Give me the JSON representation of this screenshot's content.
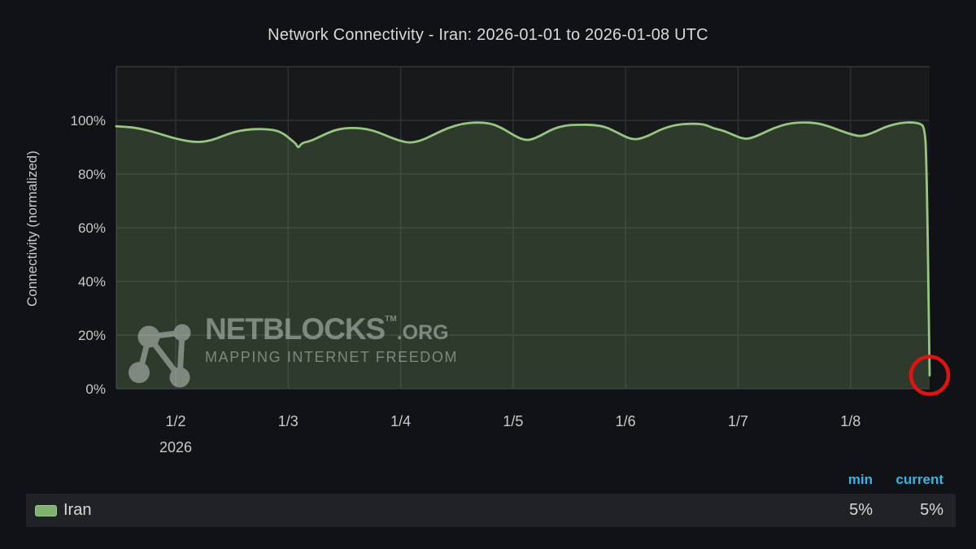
{
  "title": "Network Connectivity - Iran: 2026-01-01 to 2026-01-08 UTC",
  "chart_data": {
    "type": "area",
    "title": "Network Connectivity - Iran: 2026-01-01 to 2026-01-08 UTC",
    "ylabel": "Connectivity (normalized)",
    "xlabel": "",
    "ylim": [
      0,
      120
    ],
    "grid": true,
    "legend_position": "bottom",
    "y_ticks": [
      {
        "label": "0%",
        "value": 0
      },
      {
        "label": "20%",
        "value": 20
      },
      {
        "label": "40%",
        "value": 40
      },
      {
        "label": "60%",
        "value": 60
      },
      {
        "label": "80%",
        "value": 80
      },
      {
        "label": "100%",
        "value": 100
      }
    ],
    "x_ticks": [
      {
        "label": "1/2",
        "day": 1
      },
      {
        "label": "1/3",
        "day": 2
      },
      {
        "label": "1/4",
        "day": 3
      },
      {
        "label": "1/5",
        "day": 4
      },
      {
        "label": "1/6",
        "day": 5
      },
      {
        "label": "1/7",
        "day": 6
      },
      {
        "label": "1/8",
        "day": 7
      }
    ],
    "year_label": "2026",
    "x_range_days": [
      0.472,
      7.703
    ],
    "series": [
      {
        "name": "Iran",
        "color": "#7eb26d",
        "line_color": "#97c681",
        "fill_color": "rgba(126,178,109,0.22)",
        "min": "5%",
        "current": "5%",
        "points": [
          [
            0.472,
            97.8
          ],
          [
            0.55,
            97.6
          ],
          [
            0.65,
            97.2
          ],
          [
            0.78,
            96.0
          ],
          [
            0.9,
            94.4
          ],
          [
            1.02,
            93.0
          ],
          [
            1.13,
            92.1
          ],
          [
            1.22,
            91.9
          ],
          [
            1.32,
            92.6
          ],
          [
            1.42,
            94.2
          ],
          [
            1.52,
            95.7
          ],
          [
            1.62,
            96.5
          ],
          [
            1.72,
            96.8
          ],
          [
            1.82,
            96.7
          ],
          [
            1.9,
            96.2
          ],
          [
            1.97,
            94.8
          ],
          [
            2.03,
            92.6
          ],
          [
            2.07,
            91.3
          ],
          [
            2.09,
            89.6
          ],
          [
            2.12,
            91.6
          ],
          [
            2.2,
            92.3
          ],
          [
            2.3,
            94.3
          ],
          [
            2.4,
            96.2
          ],
          [
            2.5,
            97.1
          ],
          [
            2.6,
            97.2
          ],
          [
            2.7,
            96.8
          ],
          [
            2.8,
            95.6
          ],
          [
            2.9,
            93.8
          ],
          [
            3.0,
            92.3
          ],
          [
            3.08,
            91.6
          ],
          [
            3.18,
            92.4
          ],
          [
            3.3,
            94.8
          ],
          [
            3.42,
            97.2
          ],
          [
            3.55,
            98.8
          ],
          [
            3.68,
            99.3
          ],
          [
            3.8,
            98.9
          ],
          [
            3.9,
            97.2
          ],
          [
            4.0,
            94.6
          ],
          [
            4.08,
            92.9
          ],
          [
            4.15,
            92.6
          ],
          [
            4.25,
            94.4
          ],
          [
            4.35,
            96.8
          ],
          [
            4.47,
            98.2
          ],
          [
            4.6,
            98.4
          ],
          [
            4.72,
            98.3
          ],
          [
            4.82,
            97.6
          ],
          [
            4.92,
            95.6
          ],
          [
            5.02,
            93.4
          ],
          [
            5.1,
            92.8
          ],
          [
            5.2,
            94.2
          ],
          [
            5.32,
            96.8
          ],
          [
            5.45,
            98.4
          ],
          [
            5.58,
            98.8
          ],
          [
            5.7,
            98.6
          ],
          [
            5.78,
            97.0
          ],
          [
            5.86,
            96.3
          ],
          [
            5.94,
            94.9
          ],
          [
            6.03,
            93.3
          ],
          [
            6.1,
            93.1
          ],
          [
            6.2,
            94.8
          ],
          [
            6.32,
            97.2
          ],
          [
            6.45,
            98.9
          ],
          [
            6.58,
            99.3
          ],
          [
            6.7,
            99.0
          ],
          [
            6.8,
            97.9
          ],
          [
            6.92,
            96.0
          ],
          [
            7.02,
            94.6
          ],
          [
            7.1,
            94.0
          ],
          [
            7.2,
            95.4
          ],
          [
            7.32,
            97.8
          ],
          [
            7.45,
            99.1
          ],
          [
            7.55,
            99.3
          ],
          [
            7.62,
            98.8
          ],
          [
            7.655,
            97.5
          ],
          [
            7.675,
            88.0
          ],
          [
            7.703,
            5.0
          ]
        ]
      }
    ],
    "annotation": {
      "shape": "circle",
      "day": 7.703,
      "value": 5,
      "color": "#e01212",
      "radius": 23
    }
  },
  "watermark": {
    "brand": "NETBLOCKS",
    "tm": "TM",
    "domain": ".ORG",
    "tagline": "MAPPING INTERNET FREEDOM"
  },
  "legend": {
    "min_header": "min",
    "current_header": "current",
    "rows": [
      {
        "name": "Iran",
        "swatch_color": "#7eb26d",
        "min": "5%",
        "current": "5%"
      }
    ]
  },
  "colors": {
    "page_bg": "#111215",
    "plot_bg": "#17191a",
    "grid": "#2f3236",
    "border": "#34373c",
    "title_text": "#d8d9da",
    "tick_text": "#c8c9cb",
    "header_blue": "#33b5e5",
    "line_green": "#97c681",
    "swatch_green": "#7eb26d",
    "annotation_red": "#e01212",
    "legend_row_bg": "#202226"
  }
}
